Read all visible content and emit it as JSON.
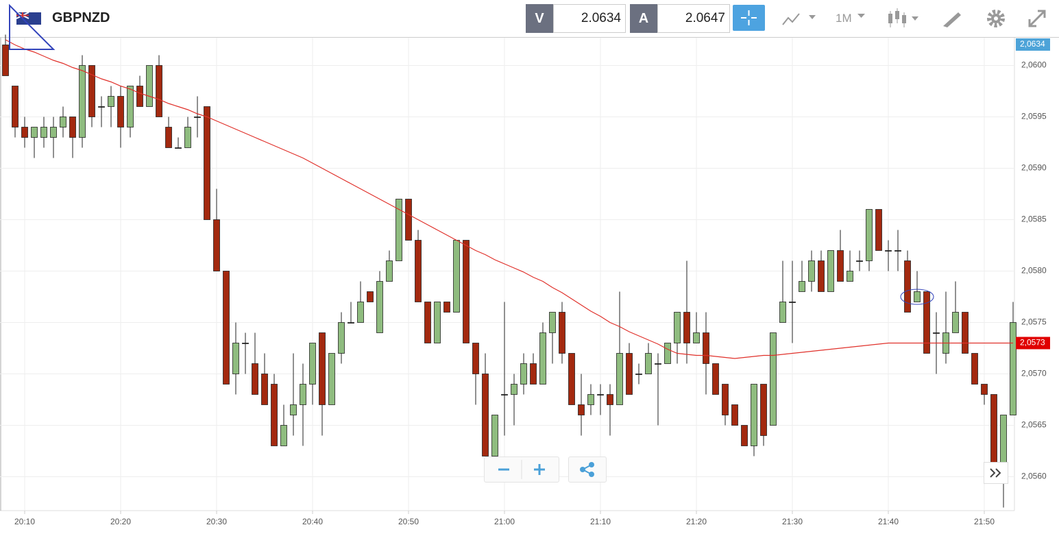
{
  "header": {
    "symbol": "GBPNZD",
    "bid_label": "V",
    "bid": "2.0634",
    "ask_label": "A",
    "ask": "2.0647",
    "timeframe": "1M"
  },
  "chart_data": {
    "type": "candlestick",
    "up_color": "#8fbc7f",
    "down_color": "#a3290f",
    "categories": [
      null,
      null,
      "20:10",
      null,
      null,
      null,
      null,
      null,
      null,
      null,
      null,
      null,
      "20:20",
      null,
      null,
      null,
      null,
      null,
      null,
      null,
      null,
      null,
      "20:30",
      null,
      null,
      null,
      null,
      null,
      null,
      null,
      null,
      null,
      "20:40",
      null,
      null,
      null,
      null,
      null,
      null,
      null,
      null,
      null,
      "20:50",
      null,
      null,
      null,
      null,
      null,
      null,
      null,
      null,
      null,
      "21:00",
      null,
      null,
      null,
      null,
      null,
      null,
      null,
      null,
      null,
      "21:10",
      null,
      null,
      null,
      null,
      null,
      null,
      null,
      null,
      null,
      "21:20",
      null,
      null,
      null,
      null,
      null,
      null,
      null,
      null,
      null,
      "21:30",
      null,
      null,
      null,
      null,
      null,
      null,
      null,
      null,
      null,
      "21:40",
      null,
      null,
      null,
      null,
      null,
      null,
      null,
      null,
      null,
      "21:50",
      null,
      null,
      null
    ],
    "open": [
      2.0602,
      2.0598,
      2.0594,
      2.0593,
      2.0593,
      2.0593,
      2.0594,
      2.0595,
      2.0593,
      2.06,
      2.0596,
      2.0596,
      2.0597,
      2.0594,
      2.0598,
      2.0596,
      2.06,
      2.0594,
      2.0592,
      2.0592,
      2.0595,
      2.0596,
      2.0585,
      2.058,
      2.057,
      2.0573,
      2.0571,
      2.057,
      2.0569,
      2.0563,
      2.0566,
      2.0567,
      2.0569,
      2.0574,
      2.0567,
      2.0572,
      2.0575,
      2.0575,
      2.0578,
      2.0574,
      2.0579,
      2.0581,
      2.0587,
      2.0583,
      2.0577,
      2.0573,
      2.0577,
      2.0576,
      2.0583,
      2.0573,
      2.057,
      2.0562,
      2.0568,
      2.0568,
      2.0569,
      2.0571,
      2.0569,
      2.0574,
      2.0576,
      2.0572,
      2.0567,
      2.0567,
      2.0568,
      2.0568,
      2.0567,
      2.0572,
      2.057,
      2.057,
      2.0571,
      2.0571,
      2.0573,
      2.0576,
      2.0573,
      2.0574,
      2.0571,
      2.0569,
      2.0567,
      2.0565,
      2.0563,
      2.0569,
      2.0565,
      2.0575,
      2.0577,
      2.0578,
      2.0579,
      2.0581,
      2.0578,
      2.0582,
      2.0579,
      2.0581,
      2.0581,
      2.0586,
      2.0582,
      2.0582,
      2.0581,
      2.0577,
      2.0578,
      2.0574,
      2.0572,
      2.0574,
      2.0576,
      2.0572,
      2.0569,
      2.0568,
      2.0561,
      2.0566
    ],
    "high": [
      2.0603,
      2.0598,
      2.0595,
      2.0594,
      2.0595,
      2.0595,
      2.0596,
      2.0595,
      2.0601,
      2.06,
      2.0597,
      2.0598,
      2.0598,
      2.0598,
      2.0599,
      2.06,
      2.0601,
      2.0595,
      2.0593,
      2.0595,
      2.0597,
      2.0596,
      2.0588,
      2.058,
      2.0575,
      2.0574,
      2.0574,
      2.0572,
      2.057,
      2.0567,
      2.0572,
      2.0571,
      2.0573,
      2.0574,
      2.0572,
      2.0576,
      2.0577,
      2.0579,
      2.0578,
      2.058,
      2.0582,
      2.0587,
      2.0587,
      2.0584,
      2.0577,
      2.0577,
      2.0577,
      2.0583,
      2.0583,
      2.0573,
      2.0572,
      2.0566,
      2.0577,
      2.057,
      2.0572,
      2.0572,
      2.0575,
      2.0576,
      2.0577,
      2.0572,
      2.057,
      2.0569,
      2.0569,
      2.0569,
      2.0578,
      2.0573,
      2.0571,
      2.0573,
      2.0572,
      2.0573,
      2.0576,
      2.0581,
      2.0576,
      2.0576,
      2.0571,
      2.0569,
      2.0567,
      2.0565,
      2.0569,
      2.0569,
      2.0574,
      2.0581,
      2.0581,
      2.0581,
      2.0582,
      2.0582,
      2.0582,
      2.0584,
      2.0582,
      2.0582,
      2.0586,
      2.0586,
      2.0583,
      2.0584,
      2.0582,
      2.058,
      2.0578,
      2.0576,
      2.0578,
      2.0579,
      2.0576,
      2.0572,
      2.0569,
      2.0568,
      2.0566,
      2.0577
    ],
    "low": [
      2.0599,
      2.0593,
      2.0592,
      2.0591,
      2.0592,
      2.0591,
      2.0593,
      2.0591,
      2.0592,
      2.0594,
      2.0594,
      2.0594,
      2.0592,
      2.0593,
      2.0596,
      2.0596,
      2.0595,
      2.0592,
      2.0592,
      2.0592,
      2.0593,
      2.0585,
      2.058,
      2.0569,
      2.0568,
      2.057,
      2.0568,
      2.0567,
      2.0563,
      2.0563,
      2.0564,
      2.0563,
      2.0567,
      2.0564,
      2.0567,
      2.0571,
      2.0575,
      2.0575,
      2.0577,
      2.0574,
      2.0579,
      2.0581,
      2.0583,
      2.0577,
      2.0573,
      2.0573,
      2.0576,
      2.0576,
      2.0573,
      2.0567,
      2.0562,
      2.0562,
      2.0564,
      2.0565,
      2.0568,
      2.0569,
      2.0569,
      2.0571,
      2.0571,
      2.0567,
      2.0564,
      2.0566,
      2.0566,
      2.0564,
      2.0567,
      2.0568,
      2.0569,
      2.057,
      2.0565,
      2.0571,
      2.0571,
      2.0571,
      2.0573,
      2.0568,
      2.0568,
      2.0565,
      2.0565,
      2.0563,
      2.0562,
      2.0563,
      2.0565,
      2.0575,
      2.0573,
      2.0578,
      2.0578,
      2.0578,
      2.0578,
      2.0579,
      2.0579,
      2.058,
      2.058,
      2.0582,
      2.058,
      2.058,
      2.0576,
      2.0577,
      2.0572,
      2.057,
      2.0571,
      2.0574,
      2.0572,
      2.0569,
      2.0567,
      2.056,
      2.0557,
      2.0566
    ],
    "close": [
      2.0599,
      2.0594,
      2.0593,
      2.0594,
      2.0594,
      2.0594,
      2.0595,
      2.0593,
      2.06,
      2.0595,
      2.0596,
      2.0597,
      2.0594,
      2.0598,
      2.0596,
      2.06,
      2.0595,
      2.0592,
      2.0592,
      2.0594,
      2.0595,
      2.0585,
      2.058,
      2.0569,
      2.0573,
      2.0573,
      2.0568,
      2.0567,
      2.0563,
      2.0565,
      2.0567,
      2.0569,
      2.0573,
      2.0567,
      2.0572,
      2.0575,
      2.0575,
      2.0577,
      2.0577,
      2.0579,
      2.0581,
      2.0587,
      2.0583,
      2.0577,
      2.0573,
      2.0577,
      2.0576,
      2.0583,
      2.0573,
      2.057,
      2.0562,
      2.0566,
      2.0568,
      2.0569,
      2.0571,
      2.0569,
      2.0574,
      2.0576,
      2.0572,
      2.0567,
      2.0566,
      2.0568,
      2.0568,
      2.0567,
      2.0572,
      2.0568,
      2.057,
      2.0572,
      2.0571,
      2.0573,
      2.0576,
      2.0573,
      2.0574,
      2.0571,
      2.0568,
      2.0566,
      2.0565,
      2.0563,
      2.0569,
      2.0564,
      2.0574,
      2.0577,
      2.0577,
      2.0579,
      2.0581,
      2.0578,
      2.0582,
      2.0579,
      2.058,
      2.0581,
      2.0586,
      2.0582,
      2.0582,
      2.0582,
      2.0576,
      2.0578,
      2.0572,
      2.0574,
      2.0574,
      2.0576,
      2.0572,
      2.0569,
      2.0568,
      2.0561,
      2.0566,
      2.0575
    ],
    "moving_average": {
      "color": "#e0302a",
      "values": [
        2.06025,
        2.0602,
        2.06016,
        2.06013,
        2.06009,
        2.06005,
        2.06002,
        2.05998,
        2.05995,
        2.05991,
        2.05987,
        2.05984,
        2.0598,
        2.05977,
        2.05973,
        2.0597,
        2.05967,
        2.05963,
        2.0596,
        2.05957,
        2.05953,
        2.0595,
        2.05946,
        2.05942,
        2.05938,
        2.05934,
        2.0593,
        2.05926,
        2.05922,
        2.05918,
        2.05914,
        2.0591,
        2.05905,
        2.059,
        2.05895,
        2.0589,
        2.05885,
        2.0588,
        2.05875,
        2.0587,
        2.05865,
        2.0586,
        2.05855,
        2.0585,
        2.05845,
        2.0584,
        2.05835,
        2.0583,
        2.05825,
        2.0582,
        2.05816,
        2.05811,
        2.05807,
        2.05803,
        2.05799,
        2.05794,
        2.0579,
        2.05784,
        2.05779,
        2.05773,
        2.05767,
        2.05761,
        2.05756,
        2.0575,
        2.05746,
        2.05741,
        2.05737,
        2.05733,
        2.05729,
        2.05724,
        2.0572,
        2.05719,
        2.05718,
        2.05718,
        2.05717,
        2.05716,
        2.05715,
        2.05716,
        2.05717,
        2.05718,
        2.05718,
        2.05719,
        2.0572,
        2.05721,
        2.05722,
        2.05723,
        2.05724,
        2.05725,
        2.05726,
        2.05727,
        2.05728,
        2.05729,
        2.0573,
        2.0573,
        2.0573,
        2.0573,
        2.0573,
        2.0573,
        2.0573,
        2.0573,
        2.0573,
        2.0573,
        2.0573,
        2.0573,
        2.0573,
        2.0573
      ]
    },
    "ma_tag": {
      "value": 2.0573,
      "label": "2,0573"
    },
    "price_tag": "2,0634",
    "ylim": [
      2.05567,
      2.06027
    ],
    "yticks": [
      {
        "value": 2.056,
        "label": "2,0560"
      },
      {
        "value": 2.0565,
        "label": "2,0565"
      },
      {
        "value": 2.057,
        "label": "2,0570"
      },
      {
        "value": 2.0575,
        "label": "2,0575"
      },
      {
        "value": 2.058,
        "label": "2,0580"
      },
      {
        "value": 2.0585,
        "label": "2,0585"
      },
      {
        "value": 2.059,
        "label": "2,0590"
      },
      {
        "value": 2.0595,
        "label": "2,0595"
      },
      {
        "value": 2.06,
        "label": "2,0600"
      }
    ],
    "grid": true
  }
}
